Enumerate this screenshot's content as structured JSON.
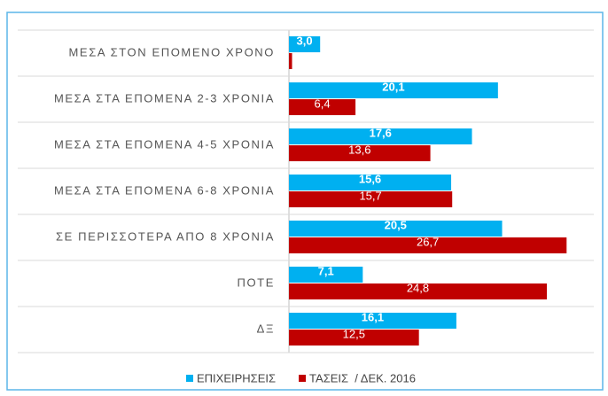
{
  "chart_data": {
    "type": "hbar",
    "categories": [
      "ΜΕΣΑ ΣΤΟΝ ΕΠΟΜΕΝΟ ΧΡΟΝΟ",
      "ΜΕΣΑ ΣΤΑ ΕΠΟΜΕΝΑ 2-3 ΧΡΟΝΙΑ",
      "ΜΕΣΑ ΣΤΑ ΕΠΟΜΕΝΑ 4-5 ΧΡΟΝΙΑ",
      "ΜΕΣΑ ΣΤΑ ΕΠΟΜΕΝΑ 6-8 ΧΡΟΝΙΑ",
      "ΣΕ ΠΕΡΙΣΣΟΤΕΡΑ ΑΠΟ 8 ΧΡΟΝΙΑ",
      "ΠΟΤΕ",
      "ΔΞ"
    ],
    "series": [
      {
        "name": "ΕΠΙΧΕΙΡΗΣΕΙΣ",
        "color": "#00b0f0",
        "values": [
          3.0,
          20.1,
          17.6,
          15.6,
          20.5,
          7.1,
          16.1
        ],
        "value_labels": [
          "3,0",
          "20,1",
          "17,6",
          "15,6",
          "20,5",
          "7,1",
          "16,1"
        ]
      },
      {
        "name": "ΤΑΣΕΙΣ  / ΔΕΚ. 2016",
        "color": "#c00000",
        "values": [
          0.3,
          6.4,
          13.6,
          15.7,
          26.7,
          24.8,
          12.5
        ],
        "value_labels": [
          null,
          "6,4",
          "13,6",
          "15,7",
          "26,7",
          "24,8",
          "12,5"
        ]
      }
    ],
    "xlim": [
      0,
      30
    ]
  }
}
